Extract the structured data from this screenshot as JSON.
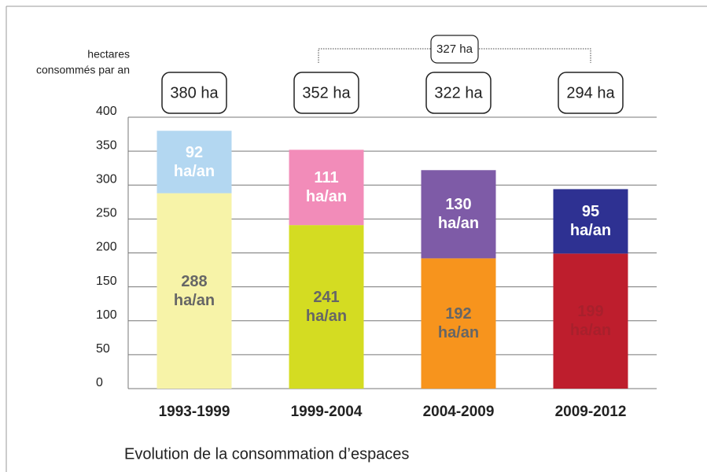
{
  "chart_data": {
    "type": "stacked_bar",
    "title": "Evolution de la consommation d’espaces",
    "y_label": [
      "hectares",
      "consommés par an"
    ],
    "categories": [
      "1993-1999",
      "1999-2004",
      "2004-2009",
      "2009-2012"
    ],
    "series": [
      {
        "colors": [
          "#f7f3a8",
          "#d4dc22",
          "#f7941d",
          "#be1e2d"
        ],
        "label_colors": [
          "#666666",
          "#666666",
          "#666666",
          "#a8202c"
        ],
        "values": [
          288,
          241,
          192,
          199
        ],
        "value_labels": [
          "288 ha/an",
          "241 ha/an",
          "192 ha/an",
          "199 ha/an"
        ]
      },
      {
        "colors": [
          "#b3d7f1",
          "#f28cb9",
          "#7e5ba7",
          "#2e3192"
        ],
        "label_colors": [
          "#ffffff",
          "#ffffff",
          "#ffffff",
          "#ffffff"
        ],
        "values": [
          92,
          111,
          130,
          95
        ],
        "value_labels": [
          "92 ha/an",
          "111 ha/an",
          "130 ha/an",
          "95 ha/an"
        ]
      }
    ],
    "total_labels": [
      "380 ha",
      "352 ha",
      "322 ha",
      "294 ha"
    ],
    "annotation": {
      "text": "327 ha",
      "from": 1,
      "to": 3
    },
    "ylim": [
      0,
      400
    ],
    "yticks": [
      0,
      50,
      100,
      150,
      200,
      250,
      300,
      350,
      400
    ],
    "grid": true
  }
}
